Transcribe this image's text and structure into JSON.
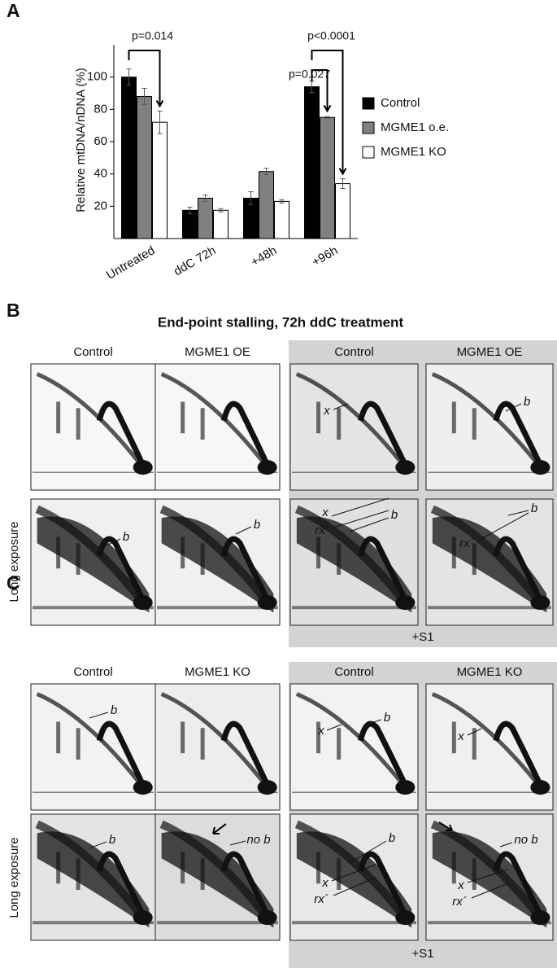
{
  "panel_a": {
    "label": "A"
  },
  "chart_data": {
    "type": "bar",
    "y_label": "Relative mtDNA/nDNA (%)",
    "categories": [
      "Untreated",
      "ddC 72h",
      "+48h",
      "+96h"
    ],
    "series": [
      {
        "name": "Control",
        "color": "#000000",
        "values": [
          100,
          17.5,
          25,
          94
        ],
        "errors": [
          5,
          2,
          4,
          3.5
        ]
      },
      {
        "name": "MGME1 o.e.",
        "color": "#808080",
        "values": [
          88,
          25,
          41.5,
          75
        ],
        "errors": [
          5,
          2,
          2,
          0.5
        ]
      },
      {
        "name": "MGME1 KO",
        "color": "#ffffff",
        "values": [
          72,
          17.5,
          23,
          34
        ],
        "errors": [
          7,
          1,
          1,
          3
        ]
      }
    ],
    "ylim": [
      0,
      120
    ],
    "yticks": [
      20,
      40,
      60,
      80,
      100
    ],
    "annotations": [
      "p=0.014",
      "p=0.027",
      "p<0.0001"
    ],
    "legend": "right"
  },
  "panel_b": {
    "label": "B",
    "title": "End-point stalling, 72h ddC treatment",
    "columns": [
      "Control",
      "MGME1 OE",
      "Control",
      "MGME1 OE"
    ],
    "row_label": "Long exposure",
    "treatment_label": "+S1",
    "gel_labels": [
      "x",
      "b",
      "b",
      "b",
      "x",
      "b",
      "rx´",
      "b",
      "rx´"
    ]
  },
  "panel_c": {
    "label": "C",
    "columns": [
      "Control",
      "MGME1 KO",
      "Control",
      "MGME1 KO"
    ],
    "row_label": "Long exposure",
    "treatment_label": "+S1",
    "gel_labels": [
      "b",
      "x",
      "b",
      "x",
      "b",
      "no b",
      "x",
      "b",
      "rx´",
      "no b",
      "x",
      "rx´"
    ]
  }
}
